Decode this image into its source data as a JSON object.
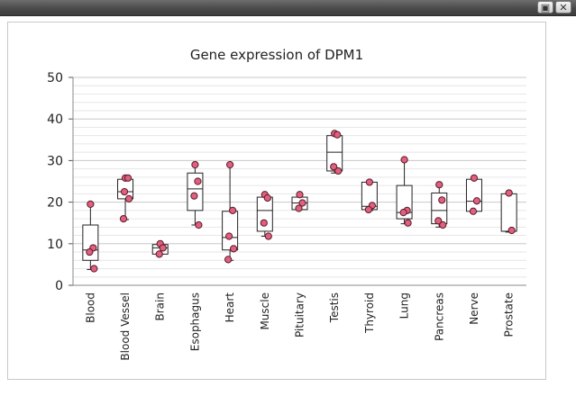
{
  "window": {
    "restore_icon": "restore-icon",
    "close_icon": "close-icon"
  },
  "chart_data": {
    "type": "box",
    "title": "Gene expression of DPM1",
    "xlabel": "",
    "ylabel": "",
    "ylim": [
      0,
      50
    ],
    "yticks": [
      0,
      10,
      20,
      30,
      40,
      50
    ],
    "grid": true,
    "colors": {
      "point_fill": "#e0607e",
      "point_stroke": "#5a1a2a",
      "box_stroke": "#222222",
      "grid_major": "#c8c8c8",
      "grid_minor": "#e6e6e6"
    },
    "categories": [
      "Blood",
      "Blood Vessel",
      "Brain",
      "Esophagus",
      "Heart",
      "Muscle",
      "Pituitary",
      "Testis",
      "Thyroid",
      "Lung",
      "Pancreas",
      "Nerve",
      "Prostate"
    ],
    "boxes": [
      {
        "min": 3.8,
        "q1": 6.0,
        "median": 8.5,
        "q3": 14.5,
        "max": 19.5,
        "points": [
          19.5,
          9.0,
          8.0,
          4.0
        ]
      },
      {
        "min": 15.8,
        "q1": 20.8,
        "median": 22.5,
        "q3": 25.5,
        "max": 25.8,
        "points": [
          25.8,
          25.8,
          22.5,
          20.8,
          16.0
        ]
      },
      {
        "min": 7.5,
        "q1": 7.5,
        "median": 9.0,
        "q3": 9.8,
        "max": 10.0,
        "points": [
          10.0,
          9.0,
          7.5
        ]
      },
      {
        "min": 14.5,
        "q1": 18.0,
        "median": 23.2,
        "q3": 27.0,
        "max": 29.0,
        "points": [
          29.0,
          25.0,
          21.5,
          14.5
        ]
      },
      {
        "min": 6.0,
        "q1": 8.5,
        "median": 11.5,
        "q3": 17.8,
        "max": 29.0,
        "points": [
          29.0,
          18.0,
          11.8,
          8.8,
          6.2
        ]
      },
      {
        "min": 11.8,
        "q1": 13.0,
        "median": 18.0,
        "q3": 21.2,
        "max": 21.8,
        "points": [
          21.8,
          21.0,
          15.0,
          11.8
        ]
      },
      {
        "min": 18.2,
        "q1": 18.2,
        "median": 19.8,
        "q3": 21.2,
        "max": 21.8,
        "points": [
          21.8,
          19.8,
          18.5
        ]
      },
      {
        "min": 27.0,
        "q1": 27.5,
        "median": 32.0,
        "q3": 36.0,
        "max": 36.5,
        "points": [
          36.5,
          36.2,
          28.5,
          27.5
        ]
      },
      {
        "min": 18.0,
        "q1": 18.2,
        "median": 19.0,
        "q3": 24.8,
        "max": 24.8,
        "points": [
          24.8,
          19.2,
          18.2
        ]
      },
      {
        "min": 14.8,
        "q1": 16.0,
        "median": 17.5,
        "q3": 24.0,
        "max": 30.2,
        "points": [
          30.2,
          18.0,
          17.5,
          15.0
        ]
      },
      {
        "min": 14.0,
        "q1": 14.8,
        "median": 18.0,
        "q3": 22.2,
        "max": 24.2,
        "points": [
          24.2,
          20.5,
          15.5,
          14.5
        ]
      },
      {
        "min": 17.8,
        "q1": 17.8,
        "median": 20.2,
        "q3": 25.5,
        "max": 25.8,
        "points": [
          25.8,
          20.3,
          17.8
        ]
      },
      {
        "min": 12.8,
        "q1": 13.0,
        "median": 13.0,
        "q3": 22.0,
        "max": 22.2,
        "points": [
          22.2,
          13.2
        ]
      }
    ]
  }
}
